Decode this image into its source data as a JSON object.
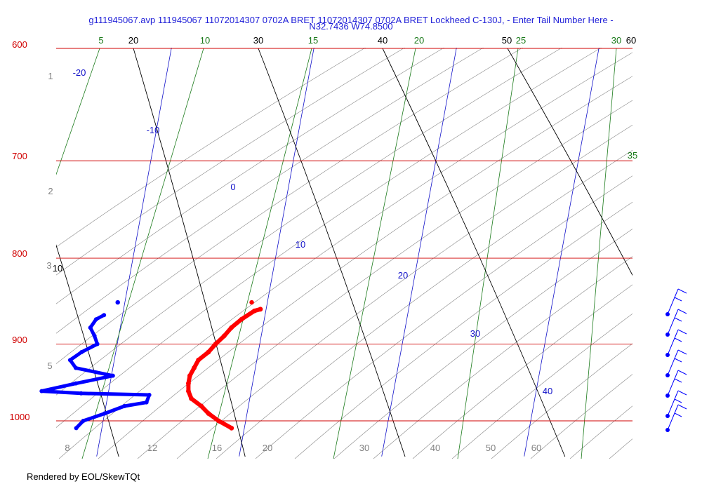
{
  "title_line1": "g111945067.avp 111945067 11072014307 0702A BRET 11072014307 0702A BRET Lockheed C-130J, - Enter Tail Number Here -",
  "title_line2": "N32.7436 W74.8500",
  "footer": "Rendered by EOL/SkewTQt",
  "colors": {
    "isobar": "#d00000",
    "dry_adiabat": "#000000",
    "mixing_ratio": "#1a7a1a",
    "isotherm": "#1010c8",
    "thin_line": "#888888",
    "altitude": "#808080",
    "temperature": "#ff0000",
    "dewpoint": "#0000ff"
  },
  "chart_data": {
    "type": "skew-t",
    "pressure_labels": [
      "600",
      "700",
      "800",
      "900",
      "1000"
    ],
    "altitude_km_labels": [
      "1",
      "2",
      "3",
      "5"
    ],
    "dry_adiabat_labels": [
      "10",
      "20",
      "30",
      "40",
      "50",
      "60"
    ],
    "mixing_ratio_labels": [
      "5",
      "10",
      "15",
      "20",
      "25",
      "30",
      "35"
    ],
    "isotherm_labels": [
      "-20",
      "-10",
      "0",
      "10",
      "20",
      "30",
      "40"
    ],
    "bottom_axis_labels": [
      "8",
      "12",
      "16",
      "20",
      "30",
      "40",
      "50",
      "60"
    ],
    "temperature_profile": [
      {
        "p": 858,
        "t": 19.6
      },
      {
        "p": 860,
        "t": 19.2
      },
      {
        "p": 870,
        "t": 18.4
      },
      {
        "p": 880,
        "t": 17.8
      },
      {
        "p": 890,
        "t": 17.4
      },
      {
        "p": 900,
        "t": 16.9
      },
      {
        "p": 910,
        "t": 16.5
      },
      {
        "p": 920,
        "t": 15.9
      },
      {
        "p": 930,
        "t": 15.7
      },
      {
        "p": 940,
        "t": 15.5
      },
      {
        "p": 950,
        "t": 15.5
      },
      {
        "p": 960,
        "t": 15.6
      },
      {
        "p": 970,
        "t": 15.9
      },
      {
        "p": 980,
        "t": 16.7
      },
      {
        "p": 990,
        "t": 17.3
      },
      {
        "p": 1000,
        "t": 18.1
      },
      {
        "p": 1010,
        "t": 19.1
      }
    ],
    "dewpoint_profile": [
      {
        "p": 865,
        "td": 8.7
      },
      {
        "p": 870,
        "td": 8.2
      },
      {
        "p": 880,
        "td": 7.9
      },
      {
        "p": 890,
        "td": 8.3
      },
      {
        "p": 900,
        "td": 8.6
      },
      {
        "p": 910,
        "td": 7.6
      },
      {
        "p": 920,
        "td": 6.9
      },
      {
        "p": 930,
        "td": 7.4
      },
      {
        "p": 940,
        "td": 10.1
      },
      {
        "p": 950,
        "td": 7.6
      },
      {
        "p": 960,
        "td": 5.3
      },
      {
        "p": 963,
        "td": 8.1
      },
      {
        "p": 965,
        "td": 12.9
      },
      {
        "p": 975,
        "td": 12.8
      },
      {
        "p": 980,
        "td": 11.3
      },
      {
        "p": 990,
        "td": 10.0
      },
      {
        "p": 1000,
        "td": 8.6
      },
      {
        "p": 1010,
        "td": 8.2
      }
    ],
    "isolated_points": [
      {
        "series": "temperature",
        "p": 850,
        "t": 18.9
      },
      {
        "series": "dewpoint",
        "p": 850,
        "td": 9.5
      }
    ],
    "wind_barbs_count": 7
  }
}
